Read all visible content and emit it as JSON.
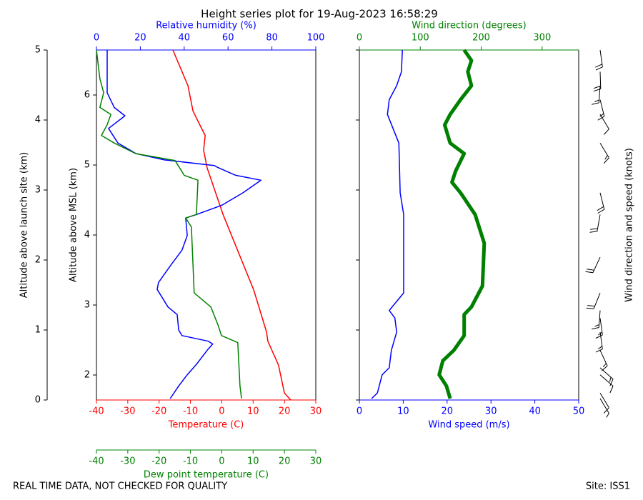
{
  "title": "Height series plot for 19-Aug-2023 16:58:29",
  "footer_left": "REAL TIME DATA, NOT CHECKED FOR QUALITY",
  "footer_right": "Site: ISS1",
  "chart_data": [
    {
      "type": "line",
      "xlabel": "Temperature (C)",
      "x2label": "Relative humidity (%)",
      "x3label": "Dew point temperature (C)",
      "ylabel": "Altitude above launch site (km)",
      "y2label": "Altitude above MSL (km)",
      "xlim": [
        -40,
        30
      ],
      "xticks": [
        -40,
        -30,
        -20,
        -10,
        0,
        10,
        20,
        30
      ],
      "xcolor": "red",
      "x2lim": [
        0,
        100
      ],
      "x2ticks": [
        0,
        20,
        40,
        60,
        80,
        100
      ],
      "x2color": "blue",
      "x3lim": [
        -40,
        30
      ],
      "x3ticks": [
        -40,
        -30,
        -20,
        -10,
        0,
        10,
        20,
        30
      ],
      "x3color": "green",
      "ylim": [
        0,
        5
      ],
      "yticks": [
        0,
        1,
        2,
        3,
        4,
        5
      ],
      "y2lim": [
        1.643,
        6.643
      ],
      "y2ticks": [
        2,
        3,
        4,
        5,
        6
      ],
      "series": [
        {
          "color": "red",
          "axis": "x",
          "linewidth": 1.5,
          "x": [
            22.0,
            20.0,
            18.1,
            14.7,
            14.3,
            10.2,
            0.4,
            -4.7,
            -5.8,
            -5.3,
            -7.0,
            -9.2,
            -10.8,
            -15.6
          ],
          "y": [
            0.0,
            0.1,
            0.5,
            0.84,
            0.97,
            1.57,
            2.65,
            3.32,
            3.57,
            3.78,
            3.93,
            4.13,
            4.49,
            5.0
          ]
        },
        {
          "color": "blue",
          "axis": "x2",
          "linewidth": 1.5,
          "x": [
            33.6,
            37.5,
            41.4,
            45.6,
            50.5,
            53.0,
            51.0,
            39.0,
            37.5,
            36.8,
            32.6,
            27.7,
            28.3,
            34.2,
            39.0,
            41.4,
            40.7,
            45.6,
            57.0,
            66.8,
            75.0,
            63.5,
            55.4,
            53.7,
            31.0,
            18.0,
            9.8,
            5.5,
            13.0,
            8.1,
            4.9,
            4.9,
            4.9
          ],
          "y": [
            0.02,
            0.2,
            0.36,
            0.51,
            0.71,
            0.8,
            0.84,
            0.92,
            1.0,
            1.22,
            1.33,
            1.58,
            1.68,
            1.94,
            2.14,
            2.35,
            2.6,
            2.65,
            2.78,
            2.96,
            3.14,
            3.21,
            3.32,
            3.35,
            3.43,
            3.52,
            3.67,
            3.88,
            4.06,
            4.18,
            4.39,
            4.59,
            5.0
          ]
        },
        {
          "color": "green",
          "axis": "x3",
          "linewidth": 1.5,
          "x": [
            6.3,
            5.8,
            5.1,
            -0.1,
            -1.2,
            -3.5,
            -8.8,
            -9.2,
            -9.7,
            -11.5,
            -8.1,
            -7.6,
            -12.0,
            -14.9,
            -27.5,
            -34.3,
            -38.4,
            -36.6,
            -35.4,
            -38.9,
            -37.7,
            -38.9,
            -40.0
          ],
          "y": [
            0.02,
            0.2,
            0.82,
            0.92,
            1.07,
            1.33,
            1.53,
            1.94,
            2.47,
            2.6,
            2.65,
            3.14,
            3.21,
            3.42,
            3.52,
            3.67,
            3.78,
            3.93,
            4.08,
            4.18,
            4.39,
            4.59,
            5.0
          ]
        }
      ]
    },
    {
      "type": "line",
      "xlabel": "Wind speed (m/s)",
      "x2label": "Wind direction (degrees)",
      "barb_label": "Wind direction and speed (knots)",
      "xlim": [
        0,
        50
      ],
      "xticks": [
        0,
        10,
        20,
        30,
        40,
        50
      ],
      "xcolor": "blue",
      "x2lim": [
        0,
        360
      ],
      "x2ticks": [
        0,
        100,
        200,
        300
      ],
      "x2color": "green",
      "ylim": [
        0,
        5
      ],
      "yticks": [
        0,
        1,
        2,
        3,
        4,
        5
      ],
      "series": [
        {
          "color": "blue",
          "axis": "x",
          "linewidth": 1.5,
          "x": [
            2.8,
            4.1,
            5.2,
            6.8,
            7.3,
            8.5,
            8.1,
            6.8,
            10.1,
            10.1,
            10.1,
            9.3,
            9.0,
            6.4,
            6.8,
            8.5,
            9.6,
            9.8
          ],
          "y": [
            0.02,
            0.1,
            0.36,
            0.46,
            0.71,
            0.97,
            1.17,
            1.28,
            1.53,
            2.04,
            2.65,
            2.96,
            3.67,
            4.08,
            4.29,
            4.49,
            4.69,
            5.0
          ]
        },
        {
          "color": "green",
          "axis": "x2",
          "linewidth": 5,
          "x": [
            149,
            143,
            131,
            137,
            155,
            172,
            172,
            184,
            202,
            205,
            190,
            166,
            152,
            158,
            172,
            149,
            140,
            149,
            166,
            184,
            178,
            184,
            172
          ],
          "y": [
            0.02,
            0.2,
            0.36,
            0.56,
            0.71,
            0.92,
            1.22,
            1.33,
            1.63,
            2.24,
            2.65,
            2.96,
            3.11,
            3.27,
            3.52,
            3.67,
            3.93,
            4.08,
            4.29,
            4.49,
            4.69,
            4.85,
            5.0
          ]
        }
      ]
    }
  ]
}
